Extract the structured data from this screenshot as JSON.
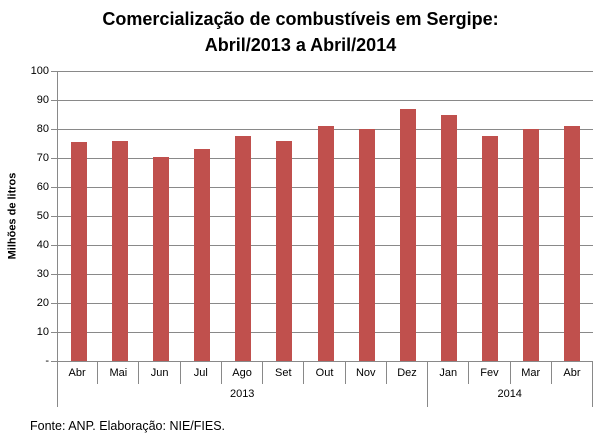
{
  "title": {
    "line1": "Comercialização de combustíveis em Sergipe:",
    "line2": "Abril/2013 a Abril/2014"
  },
  "footer": {
    "source": "Fonte: ANP. Elaboração: NIE/FIES."
  },
  "chart_data": {
    "type": "bar",
    "title": "Comercialização de combustíveis em Sergipe: Abril/2013 a Abril/2014",
    "ylabel": "Milhões de litros",
    "xlabel": "",
    "categories": [
      "Abr",
      "Mai",
      "Jun",
      "Jul",
      "Ago",
      "Set",
      "Out",
      "Nov",
      "Dez",
      "Jan",
      "Fev",
      "Mar",
      "Abr"
    ],
    "values": [
      75.5,
      76,
      70.3,
      73,
      77.5,
      76,
      81,
      80,
      87,
      85,
      77.5,
      80,
      81
    ],
    "year_groups": [
      {
        "label": "2013",
        "span": 9
      },
      {
        "label": "2014",
        "span": 4
      }
    ],
    "ylim": [
      0,
      100
    ],
    "ytick_step": 10,
    "ytick_labels": [
      "-",
      "10",
      "20",
      "30",
      "40",
      "50",
      "60",
      "70",
      "80",
      "90",
      "100"
    ],
    "grid": true,
    "legend": "none",
    "bar_color": "#c0504d",
    "grid_color": "#898989",
    "axis_color": "#898989",
    "text_color": "#000000"
  }
}
